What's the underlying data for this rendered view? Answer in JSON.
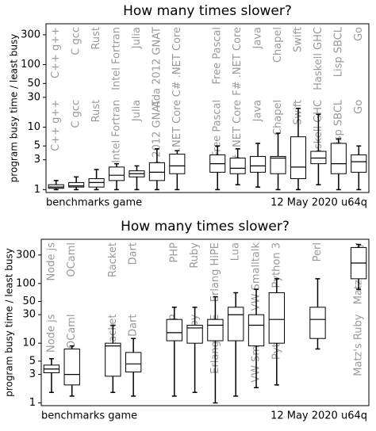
{
  "chart_data": [
    {
      "type": "box",
      "title": "How many times slower?",
      "y_label": "program busy time / least busy",
      "footer_left": "benchmarks game",
      "footer_right": "12 May 2020 u64q",
      "log_y": true,
      "ylim": [
        0.9,
        450
      ],
      "yticks": [
        1,
        3,
        5,
        10,
        30,
        50,
        100,
        300
      ],
      "color": "#000000",
      "label_color": "#999999",
      "categories": [
        "C++ g++",
        "C gcc",
        "Rust",
        "Intel Fortran",
        "Julia",
        "Ada 2012 GNAT",
        "C# .NET Core",
        null,
        "Free Pascal",
        "F# .NET Core",
        "Java",
        "Chapel",
        "Swift",
        "Haskell GHC",
        "Lisp SBCL",
        "Go"
      ],
      "boxes": [
        {
          "whislo": 1,
          "q1": 1.05,
          "med": 1.1,
          "q3": 1.2,
          "whishi": 1.4
        },
        {
          "whislo": 1,
          "q1": 1.1,
          "med": 1.15,
          "q3": 1.3,
          "whishi": 1.6
        },
        {
          "whislo": 1,
          "q1": 1.1,
          "med": 1.3,
          "q3": 1.5,
          "whishi": 2.1
        },
        {
          "whislo": 1,
          "q1": 1.4,
          "med": 1.7,
          "q3": 2.3,
          "whishi": 2.6
        },
        {
          "whislo": 1,
          "q1": 1.6,
          "med": 1.8,
          "q3": 2,
          "whishi": 2.4
        },
        {
          "whislo": 1,
          "q1": 1.4,
          "med": 1.9,
          "q3": 2.7,
          "whishi": 4.5
        },
        {
          "whislo": 1,
          "q1": 1.8,
          "med": 2.4,
          "q3": 3.7,
          "whishi": 4.2
        },
        null,
        {
          "whislo": 1,
          "q1": 1.9,
          "med": 2.6,
          "q3": 3.6,
          "whishi": 5
        },
        {
          "whislo": 1.2,
          "q1": 1.8,
          "med": 2.2,
          "q3": 3.2,
          "whishi": 4.5
        },
        {
          "whislo": 1.1,
          "q1": 1.9,
          "med": 2.4,
          "q3": 3.4,
          "whishi": 5.5
        },
        {
          "whislo": 1,
          "q1": 1.8,
          "med": 3.2,
          "q3": 3.4,
          "whishi": 8
        },
        {
          "whislo": 1,
          "q1": 1.5,
          "med": 2.3,
          "q3": 7,
          "whishi": 20
        },
        {
          "whislo": 1.2,
          "q1": 2.6,
          "med": 3.2,
          "q3": 4.1,
          "whishi": 16
        },
        {
          "whislo": 1,
          "q1": 1.8,
          "med": 2.6,
          "q3": 5.5,
          "whishi": 6.5
        },
        {
          "whislo": 1,
          "q1": 1.9,
          "med": 2.8,
          "q3": 3.6,
          "whishi": 5
        }
      ]
    },
    {
      "type": "box",
      "title": "How many times slower?",
      "y_label": "program busy time / least busy",
      "footer_left": "benchmarks game",
      "footer_right": "12 May 2020 u64q",
      "log_y": true,
      "ylim": [
        0.9,
        550
      ],
      "yticks": [
        1,
        3,
        5,
        10,
        30,
        50,
        100,
        300
      ],
      "color": "#000000",
      "label_color": "#999999",
      "categories": [
        "Node js",
        "OCaml",
        null,
        "Racket",
        "Dart",
        null,
        "PHP",
        "Ruby",
        "Erlang HiPE",
        "Lua",
        "VW Smalltalk",
        "Python 3",
        null,
        "Perl",
        null,
        "Matz's Ruby"
      ],
      "boxes": [
        {
          "whislo": 1.5,
          "q1": 3.2,
          "med": 3.7,
          "q3": 4.3,
          "whishi": 5.5
        },
        {
          "whislo": 1.3,
          "q1": 2,
          "med": 3,
          "q3": 8,
          "whishi": 9
        },
        null,
        {
          "whislo": 1.5,
          "q1": 2.8,
          "med": 9,
          "q3": 10,
          "whishi": 20
        },
        {
          "whislo": 1.3,
          "q1": 3.3,
          "med": 4.5,
          "q3": 7,
          "whishi": 12
        },
        null,
        {
          "whislo": 1.3,
          "q1": 11,
          "med": 15,
          "q3": 25,
          "whishi": 40
        },
        {
          "whislo": 1.5,
          "q1": 10,
          "med": 18,
          "q3": 20,
          "whishi": 40
        },
        {
          "whislo": 1,
          "q1": 11,
          "med": 20,
          "q3": 25,
          "whishi": 60
        },
        {
          "whislo": 1.3,
          "q1": 11,
          "med": 30,
          "q3": 40,
          "whishi": 70
        },
        {
          "whislo": 1.8,
          "q1": 9,
          "med": 20,
          "q3": 30,
          "whishi": 80
        },
        {
          "whislo": 2,
          "q1": 10,
          "med": 25,
          "q3": 70,
          "whishi": 120
        },
        null,
        {
          "whislo": 8,
          "q1": 12,
          "med": 25,
          "q3": 40,
          "whishi": 120
        },
        null,
        {
          "whislo": 80,
          "q1": 120,
          "med": 220,
          "q3": 400,
          "whishi": 450
        }
      ]
    }
  ]
}
